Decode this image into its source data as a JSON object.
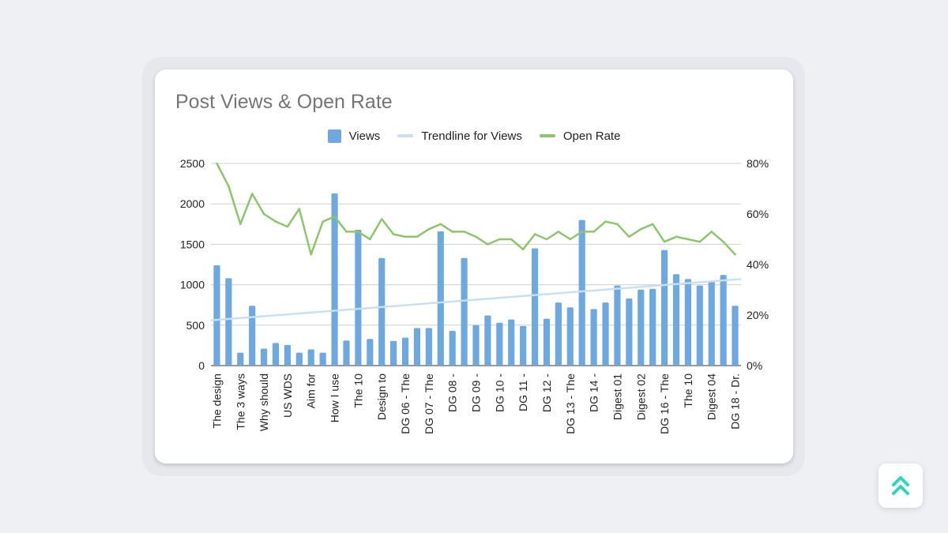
{
  "colors": {
    "views": "#6fa8dc",
    "trendline": "#c9dff3",
    "open_rate": "#8fc46f",
    "accent": "#2fd4c0"
  },
  "scroll_icon": "double-chevron-up-icon",
  "chart_data": {
    "type": "bar",
    "title": "Post Views & Open Rate",
    "legend_position": "top",
    "grid": true,
    "legend": {
      "views": "Views",
      "trendline": "Trendline for Views",
      "open_rate": "Open Rate"
    },
    "y_left": {
      "range": [
        0,
        2500
      ],
      "ticks": [
        "0",
        "500",
        "1000",
        "1500",
        "2000",
        "2500"
      ]
    },
    "y_right": {
      "range": [
        0,
        80
      ],
      "ticks": [
        "0%",
        "20%",
        "40%",
        "60%",
        "80%"
      ]
    },
    "x_tick_labels": [
      "The design",
      "The 3 ways",
      "Why should",
      "US WDS",
      "Aim for",
      "How I use",
      "The 10",
      "Design to",
      "DG 06 - The",
      "DG 07 - The",
      "DG 08 -",
      "DG 09 -",
      "DG 10 -",
      "DG 11 -",
      "DG 12 -",
      "DG 13 - The",
      "DG 14 -",
      "Digest 01",
      "Digest 02",
      "DG 16 - The",
      "The 10",
      "Digest 04",
      "DG 18 - Dr."
    ],
    "series": [
      {
        "name": "Views",
        "type": "bar",
        "values": [
          1240,
          1080,
          160,
          740,
          210,
          280,
          255,
          160,
          200,
          160,
          2130,
          310,
          1680,
          330,
          1330,
          305,
          345,
          465,
          465,
          1660,
          430,
          1330,
          500,
          620,
          530,
          570,
          490,
          1450,
          580,
          780,
          720,
          1800,
          700,
          780,
          990,
          830,
          940,
          950,
          1430,
          1130,
          1070,
          990,
          1050,
          1120,
          740
        ]
      },
      {
        "name": "Trendline for Views",
        "type": "trendline",
        "values": [
          560,
          1070
        ]
      },
      {
        "name": "Open Rate",
        "type": "line",
        "axis": "right",
        "values": [
          80,
          71,
          56,
          68,
          60,
          57,
          55,
          62,
          44,
          57,
          59,
          53,
          53,
          50,
          58,
          52,
          51,
          51,
          54,
          56,
          53,
          53,
          51,
          48,
          50,
          50,
          46,
          52,
          50,
          53,
          50,
          53,
          53,
          57,
          56,
          51,
          54,
          56,
          49,
          51,
          50,
          49,
          53,
          49,
          44
        ]
      }
    ]
  }
}
